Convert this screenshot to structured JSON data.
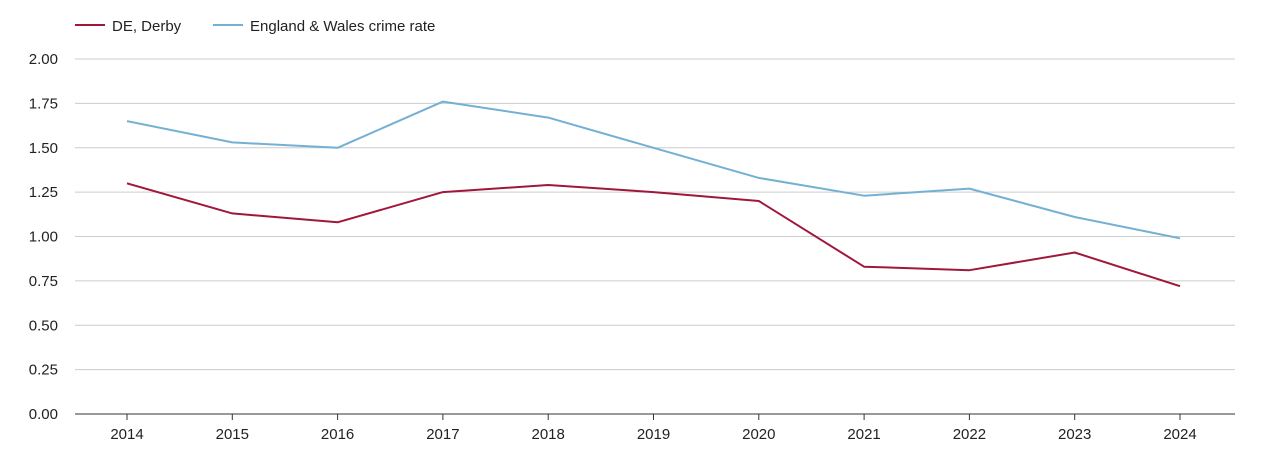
{
  "chart_data": {
    "type": "line",
    "title": "",
    "xlabel": "",
    "ylabel": "",
    "categories": [
      "2014",
      "2015",
      "2016",
      "2017",
      "2018",
      "2019",
      "2020",
      "2021",
      "2022",
      "2023",
      "2024"
    ],
    "y_ticks": [
      "0.00",
      "0.25",
      "0.50",
      "0.75",
      "1.00",
      "1.25",
      "1.50",
      "1.75",
      "2.00"
    ],
    "ylim": [
      0,
      2
    ],
    "grid": true,
    "legend_position": "top-left",
    "series": [
      {
        "name": "DE, Derby",
        "color": "#a0173c",
        "values": [
          1.3,
          1.13,
          1.08,
          1.25,
          1.29,
          1.25,
          1.2,
          0.83,
          0.81,
          0.91,
          0.72
        ]
      },
      {
        "name": "England & Wales crime rate",
        "color": "#74b0d4",
        "values": [
          1.65,
          1.53,
          1.5,
          1.76,
          1.67,
          1.5,
          1.33,
          1.23,
          1.27,
          1.11,
          0.99
        ]
      }
    ]
  }
}
